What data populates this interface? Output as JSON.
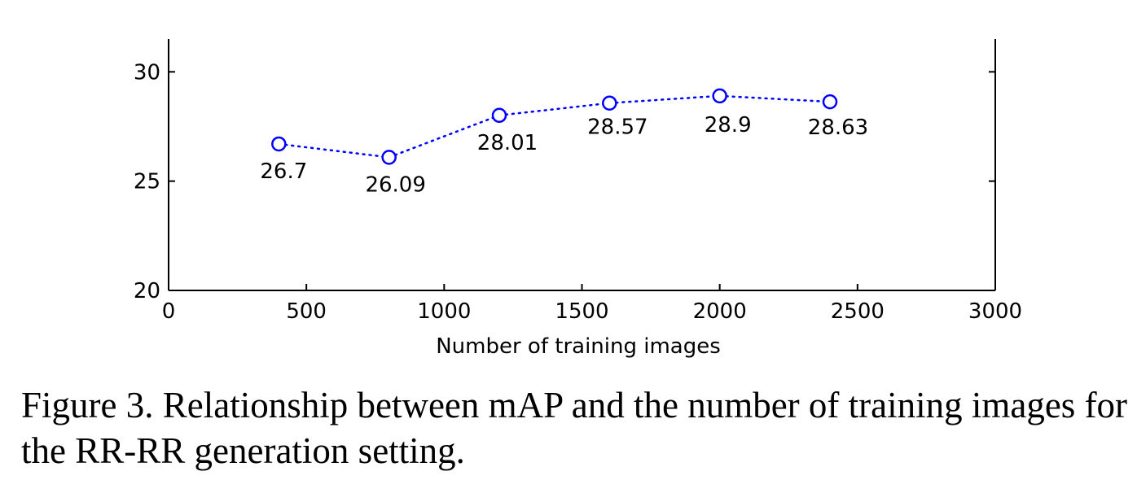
{
  "chart_data": {
    "type": "line",
    "title": "",
    "xlabel": "Number of training images",
    "ylabel": "",
    "xlim": [
      0,
      3000
    ],
    "ylim": [
      20,
      31.5
    ],
    "xticks": [
      0,
      500,
      1000,
      1500,
      2000,
      2500,
      3000
    ],
    "yticks": [
      20,
      25,
      30
    ],
    "grid": false,
    "series": [
      {
        "x": [
          400,
          800,
          1200,
          1600,
          2000,
          2400
        ],
        "y": [
          26.7,
          26.09,
          28.01,
          28.57,
          28.9,
          28.63
        ],
        "labels": [
          "26.7",
          "26.09",
          "28.01",
          "28.57",
          "28.9",
          "28.63"
        ],
        "marker": "circle",
        "line_style": "dotted",
        "color": "#0000ff"
      }
    ]
  },
  "caption": "Figure 3. Relationship between mAP and the number of training images for the RR-RR generation setting."
}
